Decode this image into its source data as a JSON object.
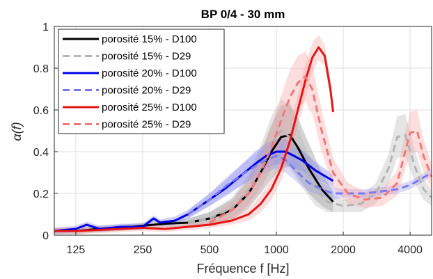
{
  "chart_data": {
    "type": "line",
    "title": "BP 0/4 - 30 mm",
    "xlabel": "Fréquence f [Hz]",
    "ylabel": "α(f)",
    "xscale": "log",
    "xlim": [
      100,
      5000
    ],
    "ylim": [
      0,
      1
    ],
    "xticks": [
      125,
      250,
      500,
      1000,
      2000,
      4000
    ],
    "yticks": [
      0,
      0.2,
      0.4,
      0.6,
      0.8,
      1
    ],
    "yticklabels": [
      "0",
      "0.2",
      "0.4",
      "0.6",
      "0.8",
      "1"
    ],
    "grid": true,
    "legend_position": "top-left",
    "series": [
      {
        "name": "porosité 15% - D100",
        "color": "#000000",
        "dash": "solid",
        "band_color": "#808080",
        "x": [
          100,
          125,
          160,
          200,
          250,
          315,
          400,
          500,
          630,
          750,
          850,
          950,
          1050,
          1150,
          1250,
          1400,
          1600,
          1800
        ],
        "y": [
          0.02,
          0.02,
          0.03,
          0.035,
          0.045,
          0.055,
          0.06,
          0.08,
          0.12,
          0.2,
          0.3,
          0.4,
          0.47,
          0.48,
          0.42,
          0.32,
          0.22,
          0.16
        ],
        "band": [
          0.015,
          0.015,
          0.015,
          0.015,
          0.015,
          0.015,
          0.02,
          0.03,
          0.05,
          0.07,
          0.1,
          0.13,
          0.15,
          0.15,
          0.14,
          0.12,
          0.08,
          0.05
        ]
      },
      {
        "name": "porosité 15% - D29",
        "color": "#b4b4b4",
        "dash": "dashed",
        "band_color": "#b4b4b4",
        "x": [
          400,
          500,
          630,
          750,
          850,
          950,
          1050,
          1150,
          1300,
          1500,
          1700,
          2000,
          2400,
          2800,
          3200,
          3500,
          3800,
          4200,
          4600,
          5000
        ],
        "y": [
          0.06,
          0.08,
          0.13,
          0.22,
          0.33,
          0.44,
          0.5,
          0.47,
          0.35,
          0.22,
          0.16,
          0.14,
          0.15,
          0.2,
          0.32,
          0.47,
          0.48,
          0.33,
          0.22,
          0.18
        ],
        "band": [
          0.02,
          0.03,
          0.05,
          0.07,
          0.1,
          0.13,
          0.15,
          0.15,
          0.12,
          0.08,
          0.05,
          0.03,
          0.04,
          0.05,
          0.07,
          0.1,
          0.1,
          0.08,
          0.05,
          0.04
        ]
      },
      {
        "name": "porosité 20% - D100",
        "color": "#0000e6",
        "dash": "solid",
        "band_color": "#7878f0",
        "x": [
          100,
          125,
          140,
          160,
          200,
          250,
          280,
          300,
          350,
          400,
          500,
          600,
          700,
          800,
          900,
          1000,
          1100,
          1200,
          1300,
          1500,
          1800
        ],
        "y": [
          0.02,
          0.03,
          0.05,
          0.03,
          0.04,
          0.04,
          0.08,
          0.06,
          0.07,
          0.1,
          0.17,
          0.23,
          0.29,
          0.34,
          0.38,
          0.4,
          0.4,
          0.38,
          0.36,
          0.31,
          0.26
        ],
        "band": [
          0.015,
          0.015,
          0.015,
          0.015,
          0.015,
          0.015,
          0.015,
          0.015,
          0.02,
          0.02,
          0.03,
          0.04,
          0.05,
          0.06,
          0.06,
          0.06,
          0.06,
          0.06,
          0.05,
          0.04,
          0.03
        ]
      },
      {
        "name": "porosité 20% - D29",
        "color": "#7a7aee",
        "dash": "dashed",
        "band_color": "#9b9bf2",
        "x": [
          400,
          500,
          600,
          700,
          800,
          900,
          1000,
          1100,
          1250,
          1400,
          1600,
          1800,
          2000,
          2500,
          3000,
          3500,
          4000,
          4500,
          5000
        ],
        "y": [
          0.1,
          0.17,
          0.24,
          0.29,
          0.33,
          0.36,
          0.38,
          0.36,
          0.3,
          0.25,
          0.22,
          0.2,
          0.2,
          0.2,
          0.21,
          0.22,
          0.24,
          0.27,
          0.3
        ],
        "band": [
          0.02,
          0.03,
          0.04,
          0.05,
          0.06,
          0.06,
          0.06,
          0.06,
          0.05,
          0.04,
          0.03,
          0.03,
          0.02,
          0.02,
          0.02,
          0.02,
          0.02,
          0.02,
          0.02
        ]
      },
      {
        "name": "porosité 25% - D100",
        "color": "#e61414",
        "dash": "solid",
        "band_color": "#f5a0a0",
        "x": [
          100,
          125,
          160,
          200,
          250,
          315,
          400,
          500,
          630,
          750,
          850,
          950,
          1050,
          1150,
          1250,
          1350,
          1450,
          1550,
          1650,
          1750,
          1800
        ],
        "y": [
          0.02,
          0.02,
          0.025,
          0.03,
          0.035,
          0.03,
          0.04,
          0.05,
          0.07,
          0.1,
          0.15,
          0.22,
          0.32,
          0.45,
          0.6,
          0.74,
          0.85,
          0.9,
          0.86,
          0.7,
          0.59
        ],
        "band": [
          0.015,
          0.015,
          0.015,
          0.015,
          0.015,
          0.015,
          0.015,
          0.015,
          0.02,
          0.03,
          0.04,
          0.05,
          0.06,
          0.07,
          0.08,
          0.08,
          0.07,
          0.06,
          0.05,
          0.04,
          0.03
        ]
      },
      {
        "name": "porosité 25% - D29",
        "color": "#f07878",
        "dash": "dashed",
        "band_color": "#f5a0a0",
        "x": [
          500,
          630,
          750,
          850,
          950,
          1050,
          1150,
          1250,
          1350,
          1450,
          1600,
          1800,
          2100,
          2500,
          3000,
          3500,
          3800,
          4000,
          4300,
          4600,
          5000
        ],
        "y": [
          0.06,
          0.12,
          0.2,
          0.3,
          0.42,
          0.55,
          0.66,
          0.73,
          0.76,
          0.7,
          0.5,
          0.3,
          0.2,
          0.17,
          0.18,
          0.25,
          0.4,
          0.49,
          0.5,
          0.38,
          0.28
        ],
        "band": [
          0.02,
          0.04,
          0.06,
          0.08,
          0.1,
          0.12,
          0.13,
          0.13,
          0.12,
          0.12,
          0.1,
          0.07,
          0.05,
          0.04,
          0.04,
          0.06,
          0.09,
          0.1,
          0.1,
          0.08,
          0.06
        ]
      }
    ]
  }
}
